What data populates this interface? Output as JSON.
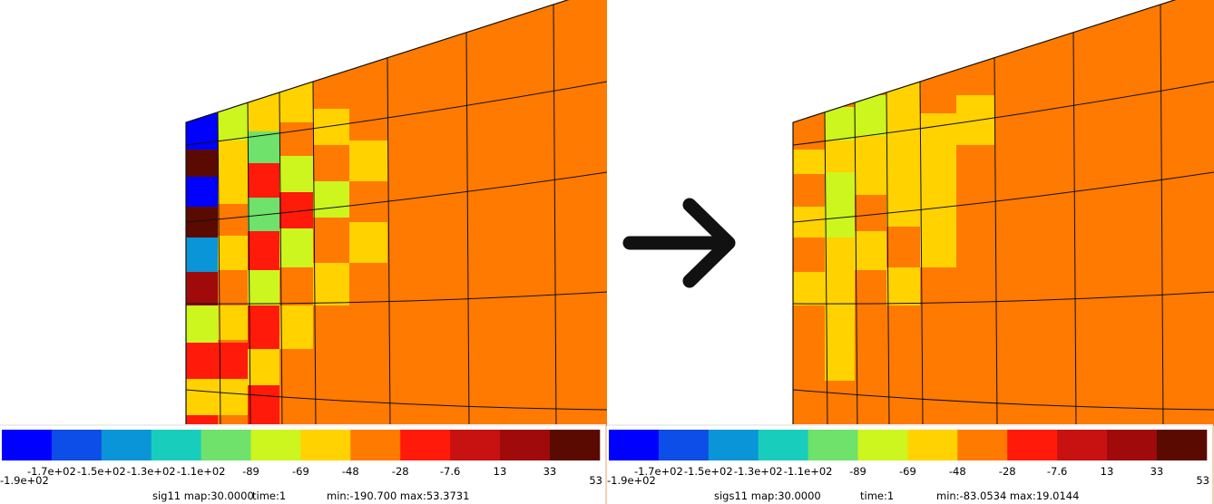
{
  "panels": [
    {
      "colorbar": {
        "labels": [
          "-1.9e+02",
          "-1.7e+02",
          "-1.5e+02",
          "-1.3e+02",
          "-1.1e+02",
          "-89",
          "-69",
          "-48",
          "-28",
          "-7.6",
          "13",
          "33",
          "53"
        ]
      },
      "caption": {
        "field": "sig11 map:30.0000",
        "time": "time:1",
        "range": "min:-190.700 max:53.3731"
      }
    },
    {
      "colorbar": {
        "labels": [
          "-1.9e+02",
          "-1.7e+02",
          "-1.5e+02",
          "-1.3e+02",
          "-1.1e+02",
          "-89",
          "-69",
          "-48",
          "-28",
          "-7.6",
          "13",
          "33",
          "53"
        ]
      },
      "caption": {
        "field": "sigs11 map:30.0000",
        "time": "time:1",
        "range": "min:-83.0534 max:19.0144"
      }
    }
  ]
}
